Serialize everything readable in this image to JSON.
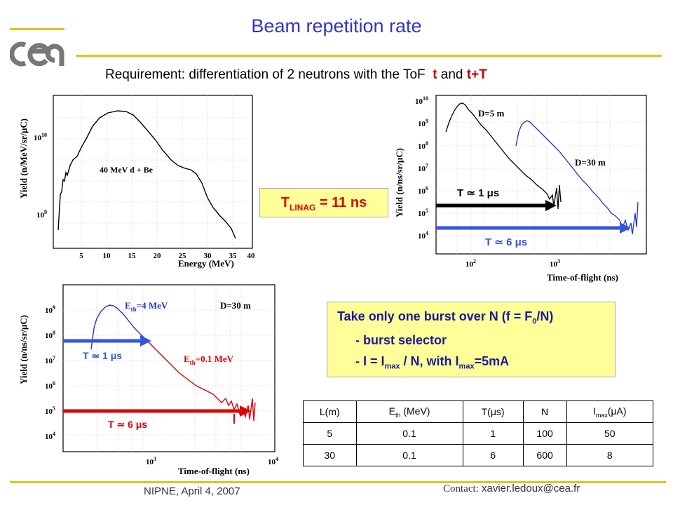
{
  "title": "Beam repetition rate",
  "requirement": {
    "prefix": "Requirement: differentiation of 2 neutrons with the ToF",
    "t": "t",
    "and": "and",
    "tT": "t+T"
  },
  "logo_text": "cea",
  "colors": {
    "title": "#3333cc",
    "gold": "#e8c020",
    "box": "#ffff99",
    "red": "#e00000",
    "blue": "#2233cc"
  },
  "linag": {
    "main": "T",
    "sub": "LINAG",
    "rest": " = 11 ns"
  },
  "plot1": {
    "ylabel": "Yield (n/MeV/sr/μC)",
    "xlabel": "Energy (MeV)",
    "annotation": "40 MeV d + Be",
    "xticks": [
      "5",
      "10",
      "15",
      "20",
      "25",
      "30",
      "35",
      "40"
    ],
    "yticks": [
      {
        "base": "10",
        "exp": "10"
      },
      {
        "base": "10",
        "exp": "9"
      }
    ]
  },
  "plot2": {
    "ylabel": "Yield (n/ns/sr/μC)",
    "xlabel": "Time-of-flight (ns)",
    "label_d5": "D=5 m",
    "label_d30": "D=30 m",
    "arrow1": "T ≃ 1 μs",
    "arrow2": "T ≃ 6 μs",
    "xticks": [
      {
        "base": "10",
        "exp": "2"
      },
      {
        "base": "10",
        "exp": "3"
      }
    ],
    "yticks": [
      {
        "base": "10",
        "exp": "10"
      },
      {
        "base": "10",
        "exp": "9"
      },
      {
        "base": "10",
        "exp": "8"
      },
      {
        "base": "10",
        "exp": "7"
      },
      {
        "base": "10",
        "exp": "6"
      },
      {
        "base": "10",
        "exp": "5"
      },
      {
        "base": "10",
        "exp": "4"
      }
    ]
  },
  "plot3": {
    "ylabel": "Yield (n/ns/sr/μC)",
    "xlabel": "Time-of-flight (ns)",
    "label_eth4": "E",
    "label_eth4_sub": "th",
    "label_eth4_rest": "=4 MeV",
    "label_eth01": "E",
    "label_eth01_sub": "th",
    "label_eth01_rest": "=0.1 MeV",
    "label_d30": "D=30 m",
    "arrow1": "T ≃ 1 μs",
    "arrow2": "T ≃ 6 μs",
    "xticks": [
      {
        "base": "10",
        "exp": "3"
      },
      {
        "base": "10",
        "exp": "4"
      }
    ],
    "yticks": [
      {
        "base": "10",
        "exp": "9"
      },
      {
        "base": "10",
        "exp": "8"
      },
      {
        "base": "10",
        "exp": "7"
      },
      {
        "base": "10",
        "exp": "6"
      },
      {
        "base": "10",
        "exp": "5"
      },
      {
        "base": "10",
        "exp": "4"
      }
    ]
  },
  "burst": {
    "line1_a": "Take only one burst over N (f = F",
    "line1_sub": "0",
    "line1_b": "/N)",
    "line2": "- burst selector",
    "line3_a": "- I = I",
    "line3_sub1": "max",
    "line3_b": " / N, with I",
    "line3_sub2": "max",
    "line3_c": "=5mA"
  },
  "table": {
    "headers": [
      {
        "main": "L(m)",
        "sub": "",
        "tail": ""
      },
      {
        "main": "E",
        "sub": "th",
        "tail": " (MeV)"
      },
      {
        "main": "T(μs)",
        "sub": "",
        "tail": ""
      },
      {
        "main": "N",
        "sub": "",
        "tail": ""
      },
      {
        "main": "I",
        "sub": "max",
        "tail": "(μA)"
      }
    ],
    "rows": [
      [
        "5",
        "0.1",
        "1",
        "100",
        "50"
      ],
      [
        "30",
        "0.1",
        "6",
        "600",
        "8"
      ]
    ]
  },
  "footer": {
    "left": "NIPNE, April 4, 2007",
    "contact_label": "Contact:",
    "contact_email": "xavier.ledoux@cea.fr"
  }
}
